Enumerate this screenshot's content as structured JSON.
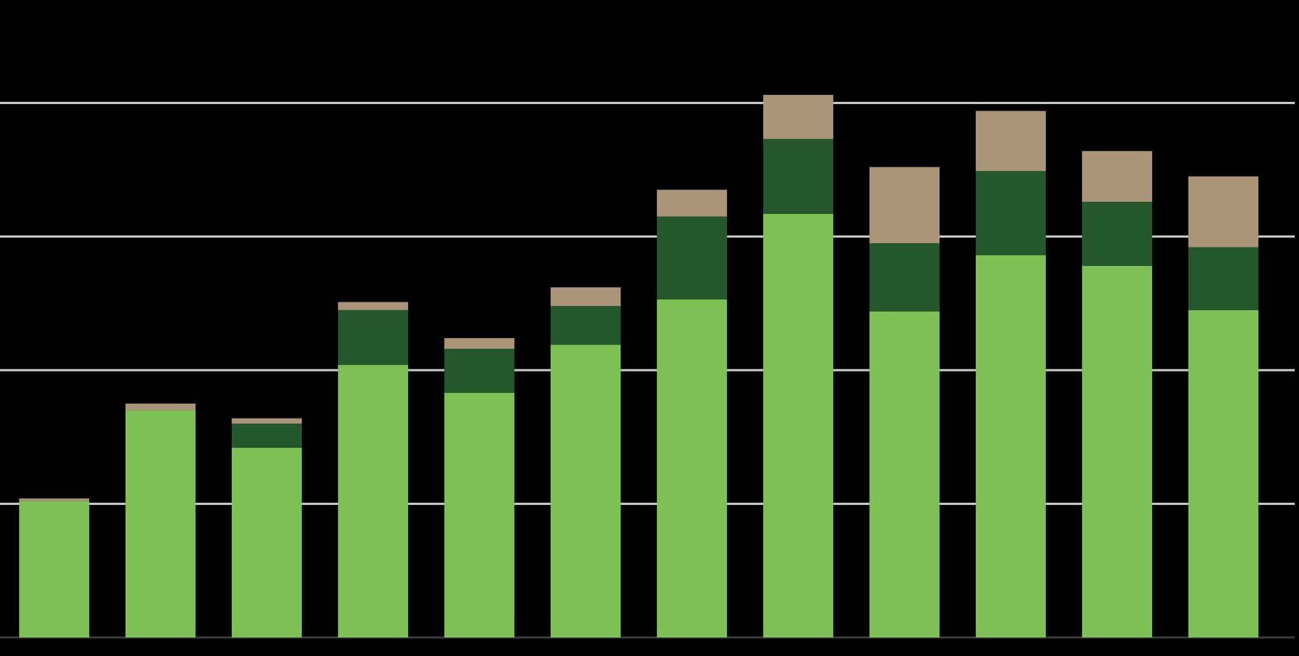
{
  "chart_data": {
    "type": "stacked_bar",
    "categories": [
      null,
      null,
      null,
      null,
      null,
      null,
      null,
      null,
      null,
      null,
      null,
      null
    ],
    "series": [
      {
        "color": "#7dc155",
        "values": [
          1.02,
          1.7,
          1.42,
          2.04,
          1.83,
          2.19,
          2.53,
          3.17,
          2.44,
          2.86,
          2.78,
          2.45
        ]
      },
      {
        "color": "#24572c",
        "values": [
          0,
          0,
          0.18,
          0.41,
          0.33,
          0.29,
          0.62,
          0.56,
          0.51,
          0.63,
          0.48,
          0.47
        ]
      },
      {
        "color": "#ab9578",
        "values": [
          0.02,
          0.05,
          0.04,
          0.06,
          0.08,
          0.14,
          0.2,
          0.33,
          0.57,
          0.45,
          0.38,
          0.53
        ]
      }
    ],
    "ylim": [
      0,
      4.77
    ],
    "yticks": [
      0,
      1,
      2,
      3,
      4
    ],
    "grid": true
  }
}
